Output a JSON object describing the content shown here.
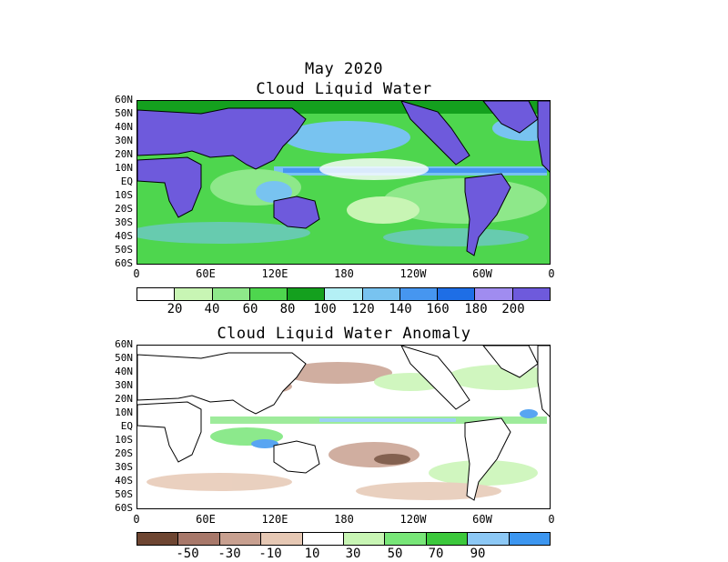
{
  "titles": {
    "date": "May 2020",
    "top": "Cloud Liquid Water",
    "bottom": "Cloud Liquid Water Anomaly"
  },
  "lat_labels": [
    "60N",
    "50N",
    "40N",
    "30N",
    "20N",
    "10N",
    "EQ",
    "10S",
    "20S",
    "30S",
    "40S",
    "50S",
    "60S"
  ],
  "lon_labels": [
    "0",
    "60E",
    "120E",
    "180",
    "120W",
    "60W",
    "0"
  ],
  "colorbar_top": {
    "labels": [
      "20",
      "40",
      "60",
      "80",
      "100",
      "120",
      "140",
      "160",
      "180",
      "200"
    ],
    "colors": [
      "#ffffff",
      "#c8f5b4",
      "#8ee88a",
      "#4ed64e",
      "#14a01e",
      "#b4f0f5",
      "#78c3f0",
      "#4696f0",
      "#1e6ee6",
      "#a08cf0",
      "#6e5adc"
    ]
  },
  "colorbar_bottom": {
    "labels": [
      "-50",
      "-30",
      "-10",
      "10",
      "30",
      "50",
      "70",
      "90"
    ],
    "colors": [
      "#6e4632",
      "#a8786a",
      "#c8a090",
      "#e6c8b4",
      "#ffffff",
      "#c8f5b4",
      "#78e678",
      "#3cc83c",
      "#8cc8f5",
      "#3c96f0"
    ]
  },
  "map_colors": {
    "land_top": "#6e5adc",
    "land_bottom": "#ffffff",
    "coast": "#000000"
  }
}
